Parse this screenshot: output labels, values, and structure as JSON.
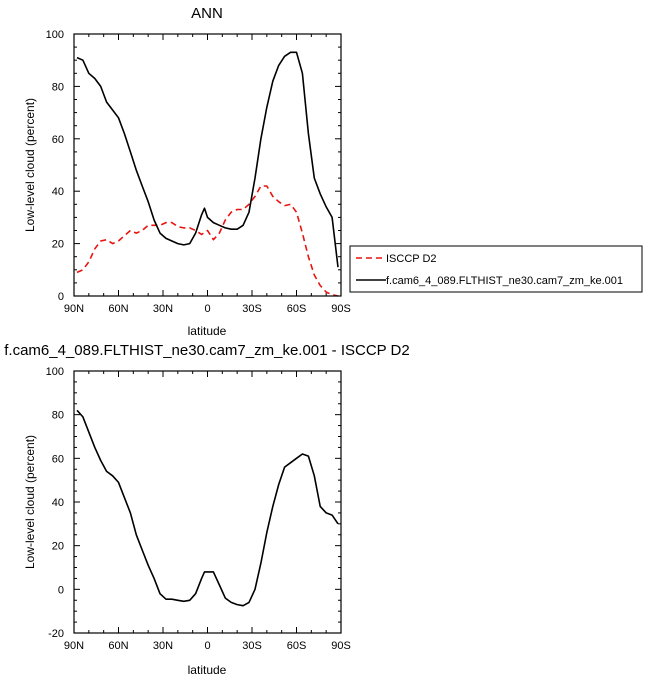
{
  "chart_data": [
    {
      "type": "line",
      "title": "ANN",
      "xlabel": "latitude",
      "ylabel": "Low-level cloud (percent)",
      "xlim": [
        90,
        -90
      ],
      "ylim": [
        0,
        100
      ],
      "x_ticks": [
        90,
        60,
        30,
        0,
        -30,
        -60,
        -90
      ],
      "x_tick_labels": [
        "90N",
        "60N",
        "30N",
        "0",
        "30S",
        "60S",
        "90S"
      ],
      "y_ticks": [
        0,
        20,
        40,
        60,
        80,
        100
      ],
      "y_tick_labels": [
        "0",
        "20",
        "40",
        "60",
        "80",
        "100"
      ],
      "legend_position": "right",
      "series": [
        {
          "name": "ISCCP D2",
          "color": "#e8140f",
          "dash": "dashed",
          "x": [
            88,
            84,
            80,
            76,
            72,
            68,
            64,
            60,
            56,
            52,
            48,
            44,
            40,
            36,
            32,
            28,
            24,
            20,
            16,
            12,
            8,
            4,
            0,
            -4,
            -8,
            -12,
            -16,
            -20,
            -24,
            -28,
            -32,
            -36,
            -40,
            -44,
            -48,
            -52,
            -56,
            -60,
            -64,
            -68,
            -72,
            -76,
            -80,
            -84,
            -88
          ],
          "values": [
            9,
            10,
            13,
            18,
            21,
            21.5,
            20,
            21,
            23,
            25,
            24,
            25,
            27,
            27,
            27,
            28,
            28,
            26.5,
            26,
            26,
            25,
            23.5,
            25,
            21.5,
            24,
            29,
            32,
            33,
            33,
            35,
            38,
            42,
            42,
            38,
            36,
            34.5,
            35,
            32,
            24,
            15,
            8,
            4,
            1.5,
            0.5,
            0
          ]
        },
        {
          "name": "f.cam6_4_089.FLTHIST_ne30.cam7_zm_ke.001",
          "color": "#000000",
          "dash": "solid",
          "x": [
            88,
            84,
            80,
            76,
            72,
            68,
            64,
            60,
            56,
            52,
            48,
            44,
            40,
            36,
            32,
            28,
            24,
            20,
            16,
            12,
            8,
            4,
            2,
            0,
            -4,
            -8,
            -12,
            -16,
            -20,
            -24,
            -28,
            -32,
            -36,
            -40,
            -44,
            -48,
            -52,
            -56,
            -60,
            -64,
            -68,
            -72,
            -76,
            -80,
            -84,
            -88
          ],
          "values": [
            91,
            90,
            85,
            83,
            80,
            74,
            71,
            68,
            62,
            55,
            48,
            42,
            36,
            29,
            24,
            22,
            21,
            20,
            19.5,
            20,
            24,
            31,
            33.5,
            30,
            28,
            27,
            26,
            25.5,
            25.5,
            27,
            32,
            45,
            60,
            72,
            82,
            88,
            91.5,
            93,
            93,
            85,
            62,
            45,
            39,
            34,
            30,
            11
          ]
        }
      ]
    },
    {
      "type": "line",
      "title": "f.cam6_4_089.FLTHIST_ne30.cam7_zm_ke.001 - ISCCP D2",
      "xlabel": "latitude",
      "ylabel": "Low-level cloud (percent)",
      "xlim": [
        90,
        -90
      ],
      "ylim": [
        -20,
        100
      ],
      "x_ticks": [
        90,
        60,
        30,
        0,
        -30,
        -60,
        -90
      ],
      "x_tick_labels": [
        "90N",
        "60N",
        "30N",
        "0",
        "30S",
        "60S",
        "90S"
      ],
      "y_ticks": [
        -20,
        0,
        20,
        40,
        60,
        80,
        100
      ],
      "y_tick_labels": [
        "-20",
        "0",
        "20",
        "40",
        "60",
        "80",
        "100"
      ],
      "series": [
        {
          "color": "#000000",
          "dash": "solid",
          "x": [
            88,
            84,
            80,
            76,
            72,
            68,
            64,
            60,
            56,
            52,
            48,
            44,
            40,
            36,
            32,
            28,
            24,
            20,
            16,
            12,
            8,
            4,
            2,
            0,
            -4,
            -8,
            -12,
            -16,
            -20,
            -24,
            -28,
            -32,
            -36,
            -40,
            -44,
            -48,
            -52,
            -56,
            -60,
            -64,
            -68,
            -72,
            -76,
            -80,
            -84,
            -88
          ],
          "values": [
            82,
            79,
            72,
            65,
            59,
            54,
            52,
            49,
            42,
            35,
            25,
            18,
            11,
            5,
            -2,
            -4.5,
            -4.5,
            -5,
            -5.5,
            -5,
            -2,
            5,
            8,
            8,
            8,
            2,
            -4,
            -6,
            -7,
            -7.5,
            -6,
            0,
            12,
            26,
            38,
            48,
            56,
            58,
            60,
            62,
            61,
            52,
            38,
            35,
            34,
            30
          ]
        }
      ]
    }
  ]
}
